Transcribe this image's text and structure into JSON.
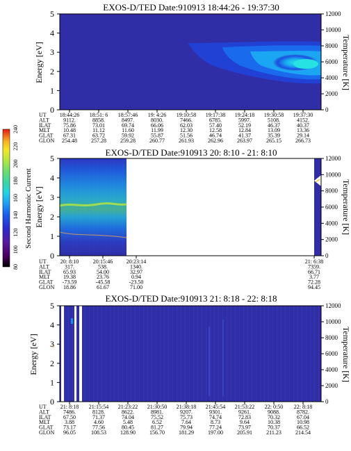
{
  "colors": {
    "background_fill": "#2f2ea6",
    "dropout": "#ffffff",
    "colorbar": [
      "#000000",
      "#4a0060",
      "#5a1aa0",
      "#2a2ad0",
      "#1a5ef0",
      "#1a9ff4",
      "#22d4e6",
      "#3ad8a0",
      "#6ee06a",
      "#b8e83a",
      "#f4e628",
      "#f6b41e",
      "#f06018",
      "#e01a10"
    ]
  },
  "colorbar": {
    "label": "Second Harmonic Current",
    "ticks": [
      "240",
      "220",
      "200",
      "180",
      "160",
      "140",
      "120",
      "100",
      "80"
    ]
  },
  "chart_data": [
    {
      "type": "heatmap",
      "title": "EXOS-D/TED   Date:910913  18:44:26 - 19:37:30",
      "ylabel": "Energy [eV]",
      "y2label": "Temperature [K]",
      "ylim": [
        0,
        5
      ],
      "y2lim": [
        0,
        12000
      ],
      "yticks": [
        "0",
        "1",
        "2",
        "3",
        "4",
        "5"
      ],
      "y2ticks": [
        "0",
        "2000",
        "4000",
        "6000",
        "8000",
        "10000",
        "12000"
      ],
      "ephemeris_labels": [
        "UT",
        "ALT",
        "ILAT",
        "MLT",
        "GLAT",
        "GLON"
      ],
      "ephemeris_columns": [
        [
          "18:44:26",
          "9112.",
          "75.86",
          "10.48",
          "67.31",
          "254.48"
        ],
        [
          "18:51: 6",
          "8858.",
          "73.01",
          "11.12",
          "63.72",
          "257.28"
        ],
        [
          "18:57:46",
          "8497.",
          "69.74",
          "11.60",
          "59.92",
          "259.28"
        ],
        [
          "19: 4:26",
          "8030.",
          "66.06",
          "11.99",
          "55.87",
          "260.77"
        ],
        [
          "19:10:58",
          "7466.",
          "62.03",
          "12.30",
          "51.56",
          "261.93"
        ],
        [
          "19:17:38",
          "6785.",
          "57.40",
          "12.58",
          "46.74",
          "262.96"
        ],
        [
          "19:24:18",
          "5997.",
          "52.19",
          "12.84",
          "41.37",
          "263.97"
        ],
        [
          "19:30:58",
          "5108.",
          "46.37",
          "13.09",
          "35.39",
          "265.15"
        ],
        [
          "19:37:30",
          "4152.",
          "40.37",
          "13.36",
          "29.14",
          "266.73"
        ]
      ]
    },
    {
      "type": "heatmap",
      "title": "EXOS-D/TED   Date:910913  20: 8:10 - 21: 8:10",
      "ylabel": "Energy [eV]",
      "y2label": "Temperature [K]",
      "ylim": [
        0,
        5
      ],
      "y2lim": [
        0,
        12000
      ],
      "yticks": [
        "0",
        "1",
        "2",
        "3",
        "4",
        "5"
      ],
      "y2ticks": [
        "0",
        "2000",
        "4000",
        "6000",
        "8000",
        "10000",
        "12000"
      ],
      "ephemeris_labels": [
        "UT",
        "ALT",
        "ILAT",
        "MLT",
        "GLAT",
        "GLON"
      ],
      "ephemeris_columns": [
        [
          "20: 8:10",
          "317.",
          "65.93",
          "19.38",
          "-73.59",
          "18.86"
        ],
        [
          "20:15:46",
          "538.",
          "54.00",
          "23.76",
          "-45.58",
          "61.67"
        ],
        [
          "20:23:14",
          "1340.",
          "32.97",
          "0.94",
          "-23.50",
          "71.00"
        ],
        [
          "21: 6:38",
          "7359.",
          "66.71",
          "3.77",
          "72.28",
          "94.45"
        ]
      ]
    },
    {
      "type": "heatmap",
      "title": "EXOS-D/TED   Date:910913  21: 8:18 - 22: 8:18",
      "ylabel": "Energy [eV]",
      "y2label": "Temperature [K]",
      "ylim": [
        0,
        5
      ],
      "y2lim": [
        0,
        12000
      ],
      "yticks": [
        "0",
        "1",
        "2",
        "3",
        "4",
        "5"
      ],
      "y2ticks": [
        "0",
        "2000",
        "4000",
        "6000",
        "8000",
        "10000",
        "12000"
      ],
      "ephemeris_labels": [
        "UT",
        "ALT",
        "ILAT",
        "MLT",
        "GLAT",
        "GLON"
      ],
      "ephemeris_columns": [
        [
          "21: 8:18",
          "7486.",
          "67.50",
          "3.88",
          "73.17",
          "96.05"
        ],
        [
          "21:15:54",
          "8128.",
          "71.37",
          "4.60",
          "77.56",
          "108.53"
        ],
        [
          "21:23:22",
          "8622.",
          "74.04",
          "5.48",
          "80.45",
          "128.90"
        ],
        [
          "21:30:50",
          "8981.",
          "75.52",
          "6.52",
          "81.27",
          "156.70"
        ],
        [
          "21:38:18",
          "9207.",
          "75.73",
          "7.64",
          "79.94",
          "181.29"
        ],
        [
          "21:45:54",
          "9301.",
          "74.74",
          "8.73",
          "77.24",
          "197.00"
        ],
        [
          "21:53:22",
          "9261.",
          "72.83",
          "9.64",
          "73.97",
          "205.91"
        ],
        [
          "22: 0:50",
          "9088.",
          "70.32",
          "10.38",
          "70.37",
          "211.23"
        ],
        [
          "22: 8:18",
          "8782.",
          "67.04",
          "10.98",
          "66.52",
          "214.54"
        ]
      ]
    }
  ]
}
